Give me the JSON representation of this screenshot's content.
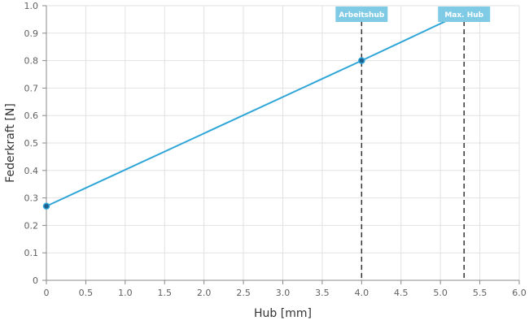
{
  "chart_data": {
    "type": "line",
    "xlabel": "Hub [mm]",
    "ylabel": "Federkraft [N]",
    "xlim": [
      0,
      6.0
    ],
    "ylim": [
      0,
      1.0
    ],
    "x_ticks": [
      "0",
      "0.5",
      "1.0",
      "1.5",
      "2.0",
      "2.5",
      "3.0",
      "3.5",
      "4.0",
      "4.5",
      "5.0",
      "5.5",
      "6.0"
    ],
    "y_ticks": [
      "0",
      "0.1",
      "0.2",
      "0.3",
      "0.4",
      "0.5",
      "0.6",
      "0.7",
      "0.8",
      "0.9",
      "1.0"
    ],
    "grid": true,
    "series": [
      {
        "points": [
          {
            "x": 0,
            "y": 0.27
          },
          {
            "x": 4.0,
            "y": 0.8
          },
          {
            "x": 5.3,
            "y": 0.975
          }
        ]
      }
    ],
    "markers": [
      {
        "label": "Arbeitshub",
        "x": 4.0
      },
      {
        "label": "Max. Hub",
        "x": 5.3
      }
    ]
  },
  "colors": {
    "series_line": "#2fa6d8",
    "point_fill": "#1f5f8b",
    "marker_line": "#333333",
    "label_bg": "#7fcbe6",
    "grid": "#e2e2e2",
    "axis": "#888888"
  }
}
